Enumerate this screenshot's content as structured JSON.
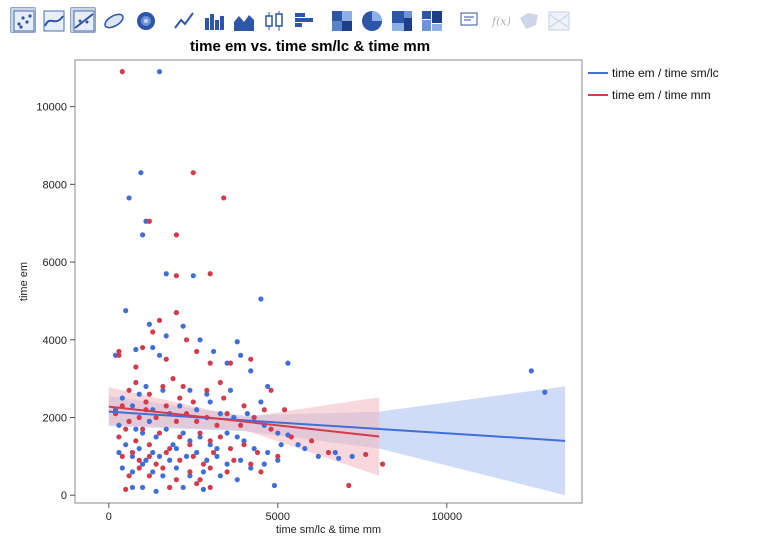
{
  "toolbar": {
    "icons": [
      "points-icon",
      "smoother-icon",
      "line-of-fit-icon",
      "ellipse-icon",
      "contour-icon",
      "line-icon",
      "bar-icon",
      "area-icon",
      "box-plot-icon",
      "histogram-icon",
      "heatmap-icon",
      "pie-icon",
      "treemap-icon",
      "mosaic-icon",
      "caption-box-icon",
      "formula-icon",
      "map-shape-icon",
      "parallel-icon"
    ],
    "selected": [
      "points-icon",
      "line-of-fit-icon"
    ]
  },
  "chart_data": {
    "type": "scatter",
    "title": "time em vs. time sm/lc & time mm",
    "xlabel": "time sm/lc & time mm",
    "ylabel": "time em",
    "xlim": [
      -1000,
      14000
    ],
    "ylim": [
      -200,
      11200
    ],
    "x_ticks": [
      0,
      5000,
      10000
    ],
    "y_ticks": [
      0,
      2000,
      4000,
      6000,
      8000,
      10000
    ],
    "grid": false,
    "legend_position": "right",
    "series": [
      {
        "name": "time em / time sm/lc",
        "color": "#3f6fd8",
        "band_color": "#a9c0f0",
        "fit": {
          "x": [
            0,
            13500
          ],
          "y": [
            2150,
            1400
          ]
        },
        "band_upper": {
          "x": [
            0,
            4000,
            8000,
            13500
          ],
          "y": [
            2550,
            2050,
            2150,
            2800
          ]
        },
        "band_lower": {
          "x": [
            0,
            4000,
            8000,
            13500
          ],
          "y": [
            1780,
            1650,
            1200,
            0
          ]
        },
        "points": [
          [
            1500,
            10900
          ],
          [
            950,
            8300
          ],
          [
            600,
            7650
          ],
          [
            1000,
            6700
          ],
          [
            1100,
            7050
          ],
          [
            1700,
            5700
          ],
          [
            2500,
            5650
          ],
          [
            2000,
            4700
          ],
          [
            4500,
            5050
          ],
          [
            3800,
            3950
          ],
          [
            200,
            3600
          ],
          [
            500,
            4750
          ],
          [
            800,
            3750
          ],
          [
            1200,
            4400
          ],
          [
            1300,
            3800
          ],
          [
            1500,
            3600
          ],
          [
            1700,
            4100
          ],
          [
            2200,
            4350
          ],
          [
            2700,
            4000
          ],
          [
            3100,
            3700
          ],
          [
            3500,
            3400
          ],
          [
            3900,
            3600
          ],
          [
            4700,
            2800
          ],
          [
            5300,
            3400
          ],
          [
            4200,
            3200
          ],
          [
            1100,
            2800
          ],
          [
            1600,
            2700
          ],
          [
            2400,
            2700
          ],
          [
            2900,
            2600
          ],
          [
            3600,
            2700
          ],
          [
            4500,
            2400
          ],
          [
            200,
            2200
          ],
          [
            400,
            2500
          ],
          [
            700,
            2300
          ],
          [
            900,
            2600
          ],
          [
            1300,
            2200
          ],
          [
            1800,
            2100
          ],
          [
            2100,
            2300
          ],
          [
            2600,
            2200
          ],
          [
            3000,
            2400
          ],
          [
            3300,
            2100
          ],
          [
            3700,
            2000
          ],
          [
            4100,
            2100
          ],
          [
            4600,
            1800
          ],
          [
            5000,
            1600
          ],
          [
            5300,
            1550
          ],
          [
            5600,
            1300
          ],
          [
            5800,
            1200
          ],
          [
            6200,
            1000
          ],
          [
            6700,
            1100
          ],
          [
            7200,
            1000
          ],
          [
            300,
            1800
          ],
          [
            600,
            1900
          ],
          [
            800,
            1700
          ],
          [
            1000,
            1600
          ],
          [
            1200,
            1900
          ],
          [
            1400,
            1500
          ],
          [
            1700,
            1700
          ],
          [
            1900,
            1300
          ],
          [
            2200,
            1600
          ],
          [
            2400,
            1400
          ],
          [
            2700,
            1500
          ],
          [
            3000,
            1300
          ],
          [
            3200,
            1200
          ],
          [
            3500,
            1600
          ],
          [
            3800,
            1500
          ],
          [
            4000,
            1400
          ],
          [
            4300,
            1200
          ],
          [
            4700,
            1100
          ],
          [
            5100,
            1300
          ],
          [
            300,
            1100
          ],
          [
            500,
            1300
          ],
          [
            700,
            1000
          ],
          [
            900,
            1200
          ],
          [
            1100,
            900
          ],
          [
            1300,
            1100
          ],
          [
            1500,
            1000
          ],
          [
            1800,
            900
          ],
          [
            2000,
            1200
          ],
          [
            2300,
            1000
          ],
          [
            2600,
            1100
          ],
          [
            2900,
            900
          ],
          [
            3200,
            1000
          ],
          [
            3500,
            800
          ],
          [
            3900,
            900
          ],
          [
            4200,
            700
          ],
          [
            4600,
            800
          ],
          [
            5000,
            900
          ],
          [
            400,
            700
          ],
          [
            700,
            600
          ],
          [
            1000,
            800
          ],
          [
            1300,
            600
          ],
          [
            1600,
            500
          ],
          [
            2000,
            700
          ],
          [
            2400,
            500
          ],
          [
            2800,
            600
          ],
          [
            3300,
            500
          ],
          [
            3800,
            400
          ],
          [
            700,
            200
          ],
          [
            1000,
            200
          ],
          [
            1400,
            100
          ],
          [
            1800,
            200
          ],
          [
            2200,
            200
          ],
          [
            2800,
            150
          ],
          [
            4900,
            250
          ],
          [
            6800,
            950
          ],
          [
            12500,
            3200
          ],
          [
            12900,
            2650
          ]
        ]
      },
      {
        "name": "time em / time mm",
        "color": "#d23c4c",
        "band_color": "#f2b8c0",
        "fit": {
          "x": [
            0,
            8000
          ],
          "y": [
            2280,
            1510
          ]
        },
        "band_upper": {
          "x": [
            0,
            4000,
            8000
          ],
          "y": [
            2780,
            2000,
            2520
          ]
        },
        "band_lower": {
          "x": [
            0,
            4000,
            8000
          ],
          "y": [
            1810,
            1680,
            500
          ]
        },
        "points": [
          [
            400,
            10900
          ],
          [
            2500,
            8300
          ],
          [
            3400,
            7650
          ],
          [
            1200,
            7050
          ],
          [
            2000,
            6700
          ],
          [
            2000,
            5650
          ],
          [
            3000,
            5700
          ],
          [
            2000,
            4700
          ],
          [
            1500,
            4500
          ],
          [
            300,
            3600
          ],
          [
            300,
            3700
          ],
          [
            800,
            3300
          ],
          [
            1000,
            3800
          ],
          [
            1300,
            4200
          ],
          [
            1700,
            3500
          ],
          [
            2300,
            4000
          ],
          [
            2600,
            3700
          ],
          [
            3000,
            3400
          ],
          [
            3600,
            3400
          ],
          [
            4200,
            3500
          ],
          [
            4800,
            2700
          ],
          [
            800,
            2900
          ],
          [
            1200,
            2600
          ],
          [
            1600,
            2800
          ],
          [
            2100,
            2500
          ],
          [
            2500,
            2400
          ],
          [
            2900,
            2700
          ],
          [
            3400,
            2500
          ],
          [
            4000,
            2300
          ],
          [
            4600,
            2200
          ],
          [
            5200,
            2200
          ],
          [
            200,
            2100
          ],
          [
            400,
            2300
          ],
          [
            600,
            1900
          ],
          [
            900,
            2000
          ],
          [
            1100,
            2200
          ],
          [
            1400,
            2000
          ],
          [
            1700,
            2300
          ],
          [
            2000,
            1900
          ],
          [
            2300,
            2100
          ],
          [
            2600,
            1900
          ],
          [
            2900,
            2000
          ],
          [
            3200,
            1800
          ],
          [
            3500,
            2100
          ],
          [
            3900,
            1800
          ],
          [
            4300,
            2000
          ],
          [
            4800,
            1700
          ],
          [
            5400,
            1500
          ],
          [
            6000,
            1400
          ],
          [
            6500,
            1100
          ],
          [
            7600,
            1050
          ],
          [
            8100,
            800
          ],
          [
            300,
            1500
          ],
          [
            500,
            1700
          ],
          [
            800,
            1400
          ],
          [
            1000,
            1700
          ],
          [
            1200,
            1300
          ],
          [
            1500,
            1600
          ],
          [
            1800,
            1200
          ],
          [
            2100,
            1500
          ],
          [
            2400,
            1300
          ],
          [
            2700,
            1600
          ],
          [
            3000,
            1400
          ],
          [
            3300,
            1500
          ],
          [
            3600,
            1200
          ],
          [
            4000,
            1300
          ],
          [
            4400,
            1100
          ],
          [
            5000,
            1000
          ],
          [
            400,
            1000
          ],
          [
            700,
            1100
          ],
          [
            900,
            900
          ],
          [
            1200,
            1000
          ],
          [
            1400,
            800
          ],
          [
            1700,
            1100
          ],
          [
            2100,
            900
          ],
          [
            2500,
            1000
          ],
          [
            2800,
            800
          ],
          [
            3100,
            1100
          ],
          [
            3700,
            900
          ],
          [
            4200,
            800
          ],
          [
            600,
            500
          ],
          [
            900,
            700
          ],
          [
            1200,
            500
          ],
          [
            1600,
            700
          ],
          [
            2000,
            400
          ],
          [
            2400,
            600
          ],
          [
            2700,
            400
          ],
          [
            3000,
            700
          ],
          [
            3500,
            600
          ],
          [
            4500,
            600
          ],
          [
            500,
            150
          ],
          [
            1800,
            200
          ],
          [
            2600,
            300
          ],
          [
            3000,
            200
          ],
          [
            7100,
            250
          ],
          [
            600,
            2700
          ],
          [
            1100,
            2400
          ],
          [
            1900,
            3000
          ],
          [
            2200,
            2800
          ],
          [
            3300,
            2900
          ]
        ]
      }
    ]
  }
}
